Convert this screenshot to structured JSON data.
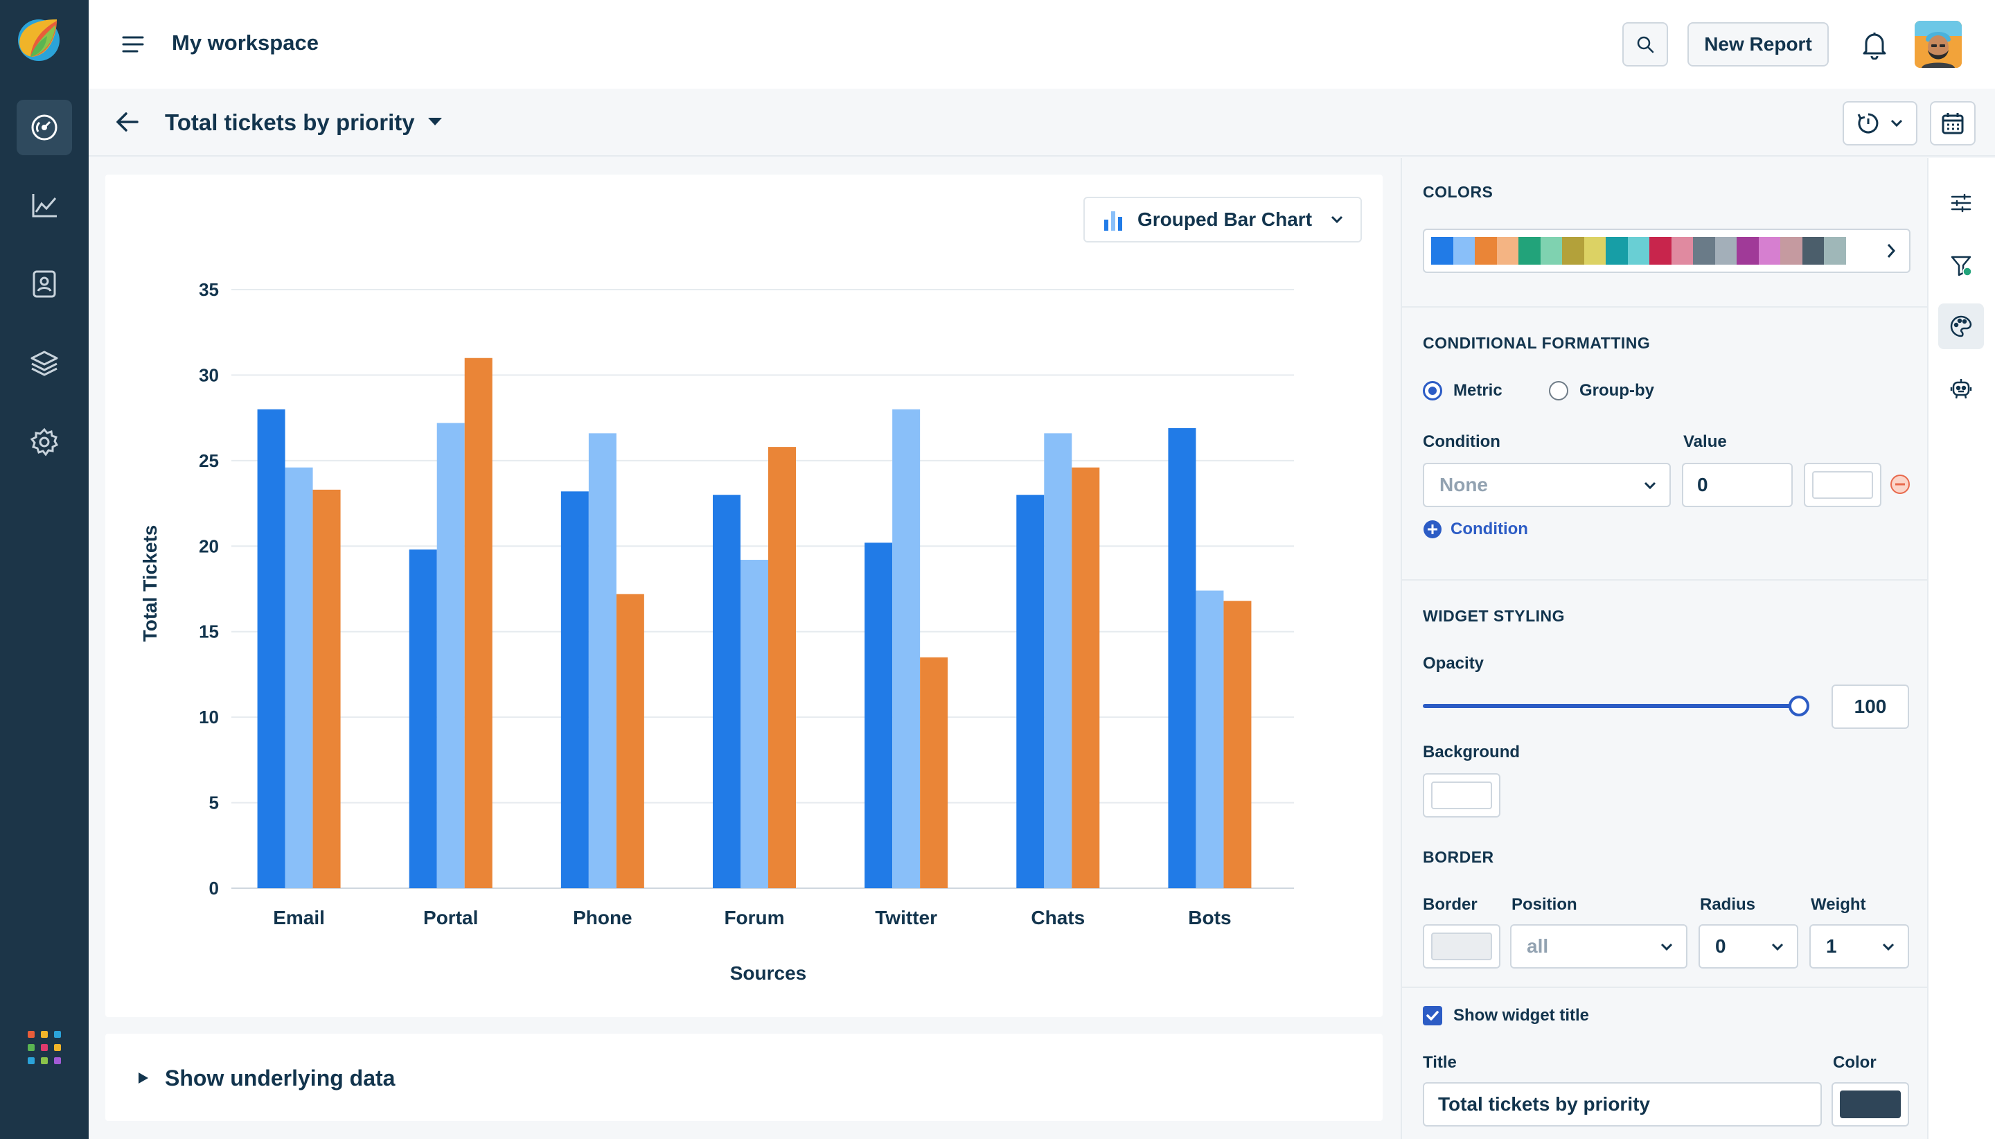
{
  "header": {
    "workspace_title": "My workspace",
    "new_report_label": "New Report"
  },
  "subheader": {
    "page_title": "Total tickets by priority"
  },
  "chart_widget": {
    "chart_type_label": "Grouped Bar Chart",
    "show_underlying_label": "Show underlying data"
  },
  "chart_data": {
    "type": "bar",
    "categories": [
      "Email",
      "Portal",
      "Phone",
      "Forum",
      "Twitter",
      "Chats",
      "Bots"
    ],
    "series": [
      {
        "color": "#217be7",
        "values": [
          28,
          19.8,
          23.2,
          23,
          20.2,
          23,
          26.9
        ]
      },
      {
        "color": "#89bff9",
        "values": [
          24.6,
          27.2,
          26.6,
          19.2,
          28,
          26.6,
          17.4
        ]
      },
      {
        "color": "#ea8537",
        "values": [
          23.3,
          31,
          17.2,
          25.8,
          13.5,
          24.6,
          16.8
        ]
      }
    ],
    "xlabel": "Sources",
    "ylabel": "Total Tickets",
    "yticks": [
      0,
      5,
      10,
      15,
      20,
      25,
      30,
      35
    ],
    "ylim": [
      0,
      35
    ],
    "grid": true
  },
  "panel": {
    "colors_title": "COLORS",
    "palette": [
      "#217be7",
      "#89bff9",
      "#ea8537",
      "#f4b483",
      "#22a37a",
      "#7fd2b0",
      "#b3a13a",
      "#dcd264",
      "#179ea6",
      "#69cfd4",
      "#c8254c",
      "#e08aa0",
      "#6a7b88",
      "#a3afb9",
      "#a03a98",
      "#d67fd0",
      "#c59aa0",
      "#4b5e6b",
      "#9fb7b8"
    ],
    "conditional_title": "CONDITIONAL FORMATTING",
    "radio_metric": "Metric",
    "radio_groupby": "Group-by",
    "condition_label": "Condition",
    "value_label": "Value",
    "condition_value": "None",
    "value_input": "0",
    "add_condition": "Condition",
    "widget_styling_title": "WIDGET STYLING",
    "opacity_label": "Opacity",
    "opacity_value": "100",
    "background_label": "Background",
    "border_title": "BORDER",
    "border_label": "Border",
    "position_label": "Position",
    "radius_label": "Radius",
    "weight_label": "Weight",
    "position_value": "all",
    "radius_value": "0",
    "weight_value": "1",
    "show_title_label": "Show widget title",
    "title_label": "Title",
    "color_label": "Color",
    "title_input": "Total tickets by priority",
    "title_color": "#2f4558"
  }
}
